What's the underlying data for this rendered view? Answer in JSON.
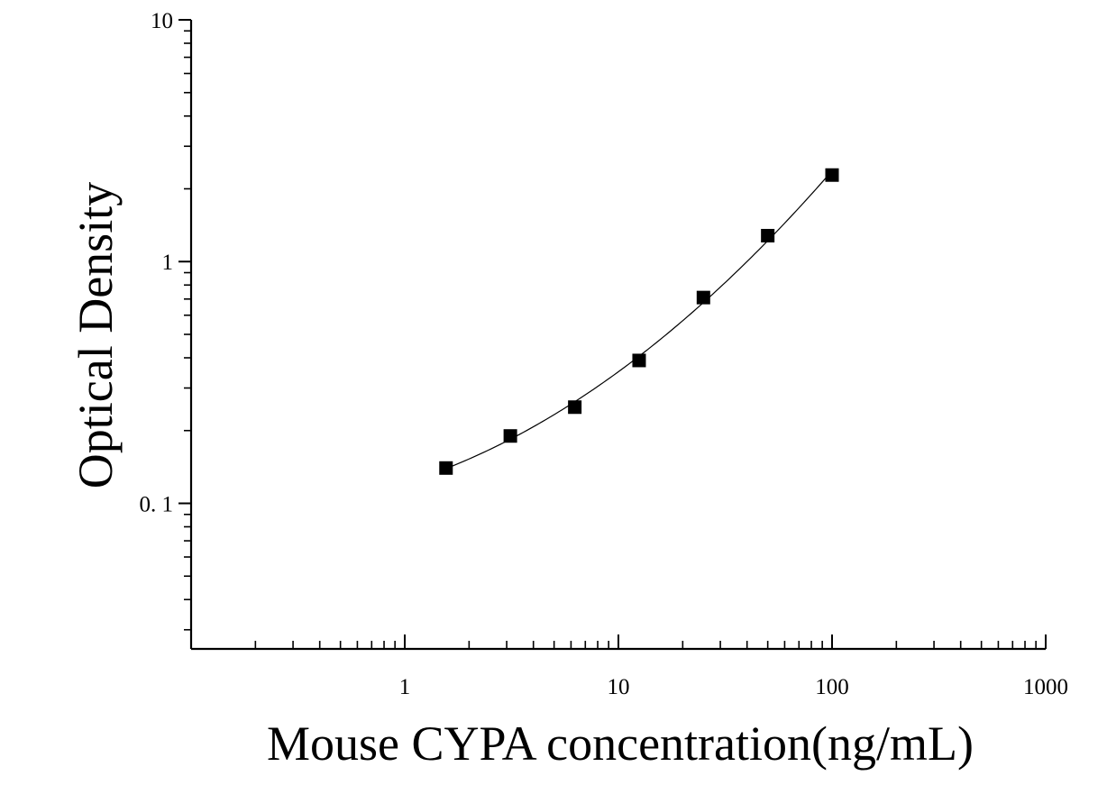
{
  "chart_data": {
    "type": "scatter",
    "title": "",
    "xlabel": "Mouse CYPA concentration(ng/mL)",
    "ylabel": "Optical Density",
    "xscale": "log",
    "yscale": "log",
    "xlim": [
      0.1,
      1000
    ],
    "ylim": [
      0.025,
      10
    ],
    "x_ticks": [
      {
        "value": 1,
        "label": "1"
      },
      {
        "value": 10,
        "label": "10"
      },
      {
        "value": 100,
        "label": "100"
      },
      {
        "value": 1000,
        "label": "1000"
      }
    ],
    "y_ticks": [
      {
        "value": 0.1,
        "label": "0. 1"
      },
      {
        "value": 1,
        "label": "1"
      },
      {
        "value": 10,
        "label": "10"
      }
    ],
    "grid": false,
    "legend": "none",
    "series": [
      {
        "marker": "square",
        "color": "#000000",
        "x": [
          1.56,
          3.12,
          6.25,
          12.5,
          25,
          50,
          100
        ],
        "y": [
          0.14,
          0.19,
          0.25,
          0.39,
          0.71,
          1.28,
          2.28
        ]
      }
    ],
    "fit_curve": true
  }
}
